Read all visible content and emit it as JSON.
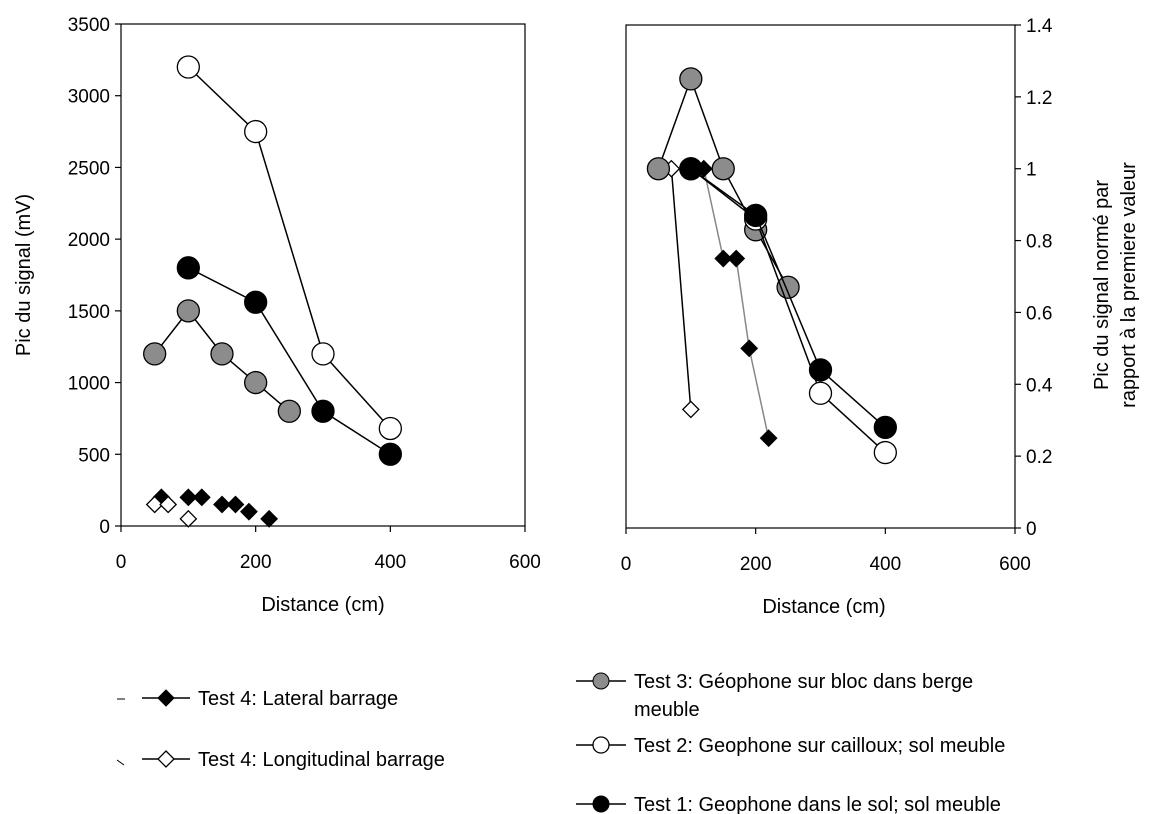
{
  "chart_data": [
    {
      "type": "scatter",
      "xlabel": "Distance (cm)",
      "ylabel": "Pic du signal (mV)",
      "xlim": [
        0,
        600
      ],
      "ylim": [
        0,
        3500
      ],
      "xticks": [
        "0",
        "200",
        "400",
        "600"
      ],
      "yticks": [
        "0",
        "500",
        "1000",
        "1500",
        "2000",
        "2500",
        "3000",
        "3500"
      ],
      "grid": false,
      "series": [
        {
          "name": "Test 3: Géophone sur bloc dans berge meuble",
          "marker": "circle",
          "fill": "#8c8c8c",
          "line": true,
          "x": [
            50,
            100,
            150,
            200,
            250
          ],
          "y": [
            1200,
            1500,
            1200,
            1000,
            800
          ]
        },
        {
          "name": "Test 2: Geophone sur cailloux; sol meuble",
          "marker": "circle",
          "fill": "#ffffff",
          "line": true,
          "x": [
            100,
            200,
            300,
            400
          ],
          "y": [
            3200,
            2750,
            1200,
            680
          ]
        },
        {
          "name": "Test 1: Geophone dans le sol; sol meuble",
          "marker": "circle",
          "fill": "#000000",
          "line": true,
          "x": [
            100,
            200,
            300,
            400
          ],
          "y": [
            1800,
            1560,
            800,
            500
          ]
        },
        {
          "name": "Test 4: Lateral barrage",
          "marker": "diamond",
          "fill": "#000000",
          "line": false,
          "x": [
            60,
            100,
            120,
            150,
            170,
            190,
            220
          ],
          "y": [
            200,
            200,
            200,
            150,
            150,
            100,
            50
          ]
        },
        {
          "name": "Test 4: Longitudinal barrage",
          "marker": "diamond",
          "fill": "#ffffff",
          "line": false,
          "x": [
            50,
            70,
            100
          ],
          "y": [
            150,
            150,
            50
          ]
        }
      ]
    },
    {
      "type": "line",
      "xlabel": "Distance (cm)",
      "ylabel": "Pic du signal normé par rapport à la premiere valeur",
      "ylabel_lines": [
        "Pic du signal normé par",
        "rapport à la premiere valeur"
      ],
      "xlim": [
        0,
        600
      ],
      "ylim": [
        0,
        1.4
      ],
      "xticks": [
        "0",
        "200",
        "400",
        "600"
      ],
      "yticks": [
        "0",
        "0.2",
        "0.4",
        "0.6",
        "0.8",
        "1",
        "1.2",
        "1.4"
      ],
      "y_axis_side": "right",
      "grid": false,
      "series": [
        {
          "name": "Test 4: Longitudinal barrage",
          "marker": "diamond",
          "fill": "#ffffff",
          "line": true,
          "line_color": "#000000",
          "x": [
            50,
            70,
            100
          ],
          "y": [
            1.0,
            1.0,
            0.33
          ]
        },
        {
          "name": "Test 4: Lateral barrage",
          "marker": "diamond",
          "fill": "#000000",
          "line": true,
          "line_color": "#888888",
          "x": [
            100,
            120,
            150,
            170,
            190,
            220
          ],
          "y": [
            1.0,
            1.0,
            0.75,
            0.75,
            0.5,
            0.25
          ]
        },
        {
          "name": "Test 3: Géophone sur bloc dans berge meuble",
          "marker": "circle",
          "fill": "#8c8c8c",
          "line": true,
          "line_color": "#000000",
          "x": [
            50,
            100,
            150,
            200,
            250
          ],
          "y": [
            1.0,
            1.25,
            1.0,
            0.83,
            0.67
          ]
        },
        {
          "name": "Test 2: Geophone sur cailloux; sol meuble",
          "marker": "circle",
          "fill": "#ffffff",
          "line": true,
          "line_color": "#000000",
          "x": [
            100,
            200,
            300,
            400
          ],
          "y": [
            1.0,
            0.86,
            0.375,
            0.21
          ]
        },
        {
          "name": "Test 1: Geophone dans le sol; sol meuble",
          "marker": "circle",
          "fill": "#000000",
          "line": true,
          "line_color": "#000000",
          "x": [
            100,
            200,
            300,
            400
          ],
          "y": [
            1.0,
            0.87,
            0.44,
            0.28
          ]
        }
      ]
    }
  ],
  "legend": {
    "items": [
      {
        "label": "Test 4: Lateral barrage",
        "marker": "diamond",
        "fill": "#000000"
      },
      {
        "label": "Test 4: Longitudinal barrage",
        "marker": "diamond",
        "fill": "#ffffff"
      },
      {
        "label_lines": [
          "Test 3: Géophone sur bloc dans berge",
          "meuble"
        ],
        "marker": "circle",
        "fill": "#8c8c8c"
      },
      {
        "label": "Test 2: Geophone sur cailloux; sol meuble",
        "marker": "circle",
        "fill": "#ffffff"
      },
      {
        "label": "Test 1: Geophone dans le sol; sol meuble",
        "marker": "circle",
        "fill": "#000000"
      }
    ]
  }
}
